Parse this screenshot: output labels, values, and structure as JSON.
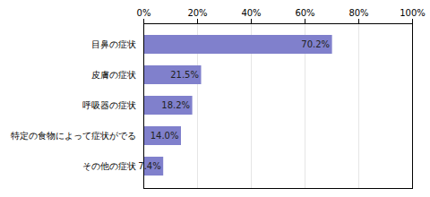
{
  "chart_data": {
    "type": "bar",
    "orientation": "horizontal",
    "categories": [
      "目鼻の症状",
      "皮膚の症状",
      "呼吸器の症状",
      "特定の食物によって症状がでる",
      "その他の症状"
    ],
    "values": [
      70.2,
      21.5,
      18.2,
      14.0,
      7.4
    ],
    "value_labels": [
      "70.2%",
      "21.5%",
      "18.2%",
      "14.0%",
      "7.4%"
    ],
    "data_labels": true,
    "color": "#8080cc",
    "xlim": [
      0,
      100
    ],
    "xticks": [
      {
        "value": 0,
        "label": "0%"
      },
      {
        "value": 20,
        "label": "20%"
      },
      {
        "value": 40,
        "label": "40%"
      },
      {
        "value": 60,
        "label": "60%"
      },
      {
        "value": 80,
        "label": "80%"
      },
      {
        "value": 100,
        "label": "100%"
      }
    ],
    "grid": true
  }
}
